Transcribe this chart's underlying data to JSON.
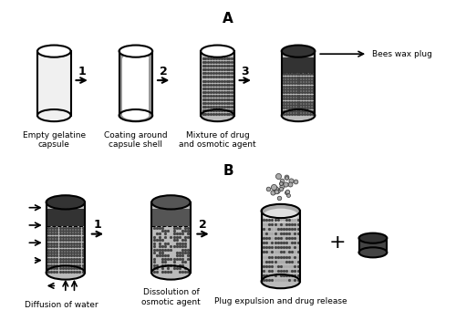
{
  "title_A": "A",
  "title_B": "B",
  "label_1": "Empty gelatine\ncapsule",
  "label_2": "Coating around\ncapsule shell",
  "label_3": "Mixture of drug\nand osmotic agent",
  "label_4": "Bees wax plug",
  "label_B1": "Diffusion of water",
  "label_B2": "Dissolution of\nosmotic agent",
  "label_B3": "Plug expulsion and drug release",
  "arrow_labels": [
    "1",
    "2",
    "3",
    "1",
    "2"
  ],
  "color_white": "#ffffff",
  "color_light_gray": "#c8c8c8",
  "color_mid_gray": "#888888",
  "color_dark_gray": "#444444",
  "color_black": "#000000",
  "color_bg": "#ffffff",
  "color_dots": "#555555",
  "color_shell": "#aaaaaa"
}
